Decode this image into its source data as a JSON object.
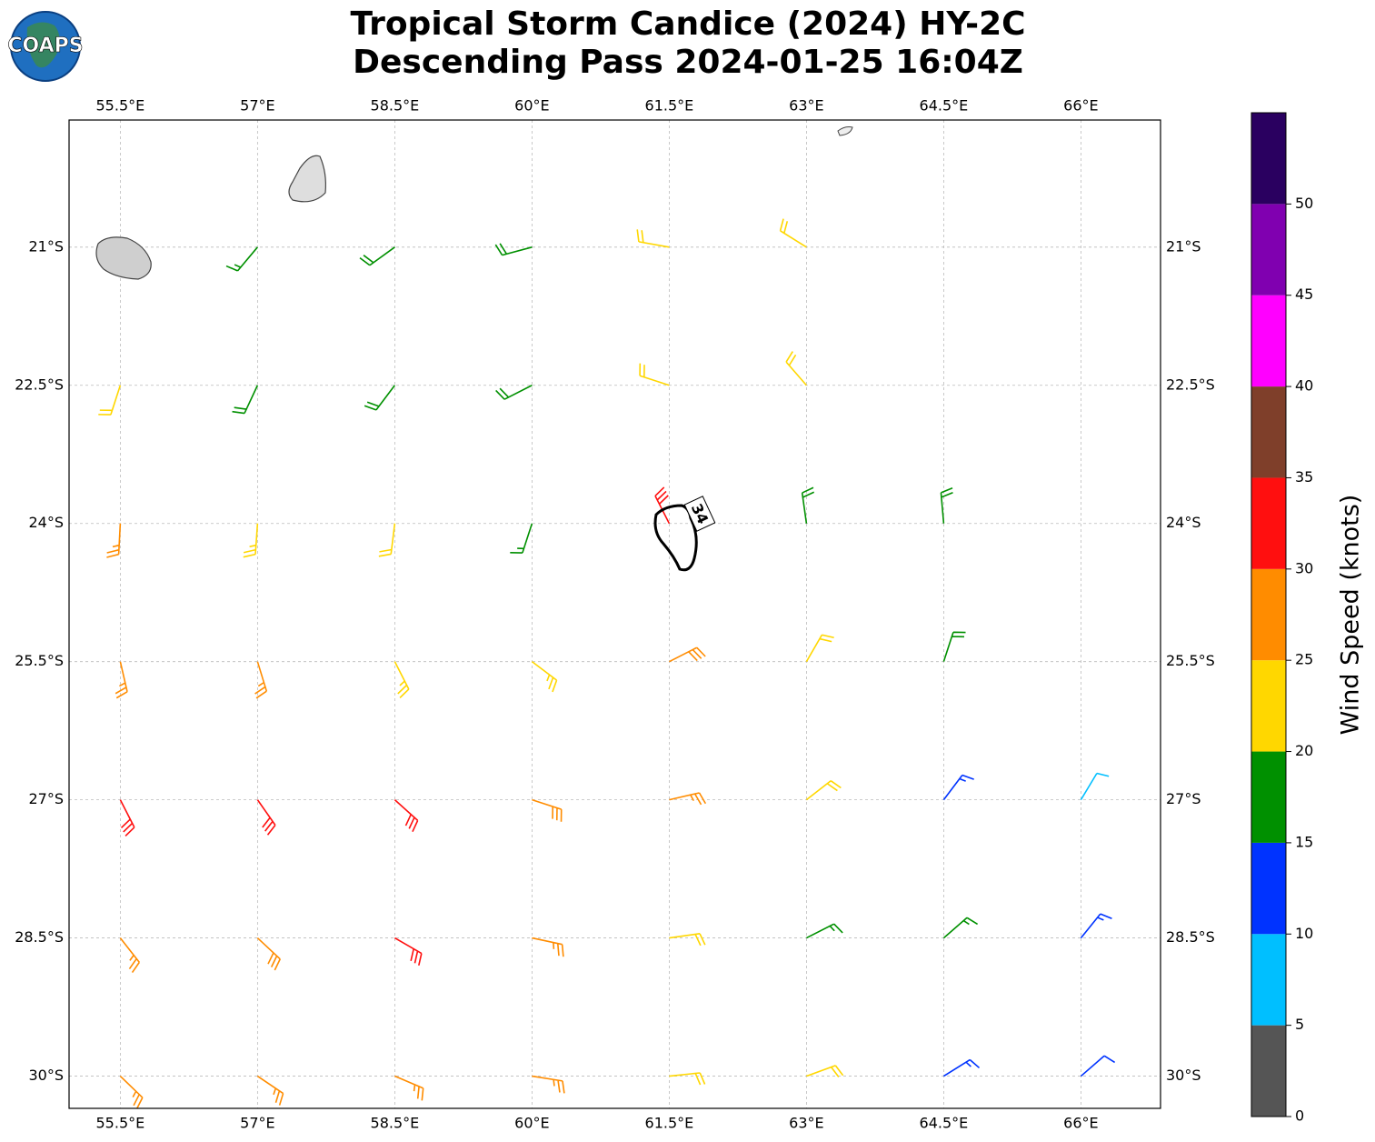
{
  "logo_text": "COAPS",
  "chart_data": {
    "type": "barbs",
    "title": "Tropical Storm Candice (2024) HY-2C",
    "subtitle": "Descending Pass 2024-01-25 16:04Z",
    "annotation": "34",
    "xlim": [
      54.94,
      66.87
    ],
    "ylim": [
      -30.35,
      -19.62
    ],
    "grid": true,
    "xticks": [
      {
        "value": 55.5,
        "label": "55.5°E"
      },
      {
        "value": 57,
        "label": "57°E"
      },
      {
        "value": 58.5,
        "label": "58.5°E"
      },
      {
        "value": 60,
        "label": "60°E"
      },
      {
        "value": 61.5,
        "label": "61.5°E"
      },
      {
        "value": 63,
        "label": "63°E"
      },
      {
        "value": 64.5,
        "label": "64.5°E"
      },
      {
        "value": 66,
        "label": "66°E"
      }
    ],
    "yticks": [
      {
        "value": -21,
        "label": "21°S"
      },
      {
        "value": -22.5,
        "label": "22.5°S"
      },
      {
        "value": -24,
        "label": "24°S"
      },
      {
        "value": -25.5,
        "label": "25.5°S"
      },
      {
        "value": -27,
        "label": "27°S"
      },
      {
        "value": -28.5,
        "label": "28.5°S"
      },
      {
        "value": -30,
        "label": "30°S"
      }
    ],
    "barbs": {
      "lon": [
        55.5,
        57,
        58.5,
        60,
        61.5,
        63,
        64.5,
        66
      ],
      "lat": [
        -21,
        -22.5,
        -24,
        -25.5,
        -27,
        -28.5,
        -30
      ],
      "speed": [
        [
          null,
          17,
          18,
          18,
          22,
          22,
          null,
          null
        ],
        [
          22,
          18,
          18,
          18,
          22,
          22,
          null,
          null
        ],
        [
          26,
          23,
          22,
          17,
          32,
          19,
          18,
          null
        ],
        [
          26,
          26,
          24,
          24,
          28,
          22,
          18,
          null
        ],
        [
          31,
          31,
          30,
          29,
          27,
          22,
          14,
          9
        ],
        [
          27,
          28,
          30,
          27,
          22,
          17,
          16,
          13
        ],
        [
          27,
          27,
          26,
          26,
          22,
          21,
          13,
          12
        ]
      ],
      "direction": [
        [
          null,
          220,
          234,
          255,
          280,
          302,
          null,
          null
        ],
        [
          198,
          205,
          217,
          243,
          288,
          319,
          null,
          null
        ],
        [
          183,
          184,
          187,
          198,
          333,
          352,
          355,
          null
        ],
        [
          167,
          163,
          153,
          127,
          63,
          30,
          18,
          null
        ],
        [
          153,
          145,
          132,
          108,
          77,
          52,
          37,
          31
        ],
        [
          142,
          133,
          120,
          102,
          82,
          63,
          49,
          39
        ],
        [
          134,
          124,
          113,
          99,
          84,
          70,
          58,
          49
        ]
      ]
    },
    "colorbar": {
      "label": "Wind Speed (knots)",
      "boundaries": [
        0,
        5,
        10,
        15,
        20,
        25,
        30,
        35,
        40,
        45,
        50,
        55
      ],
      "colors": [
        "#555555",
        "#00bfff",
        "#0033ff",
        "#009000",
        "#ffd700",
        "#ff8c00",
        "#ff0f0f",
        "#7f3f2a",
        "#ff00ff",
        "#8000b0",
        "#2a0060"
      ],
      "ticks": [
        0,
        5,
        10,
        15,
        20,
        25,
        30,
        35,
        40,
        45,
        50
      ]
    }
  }
}
